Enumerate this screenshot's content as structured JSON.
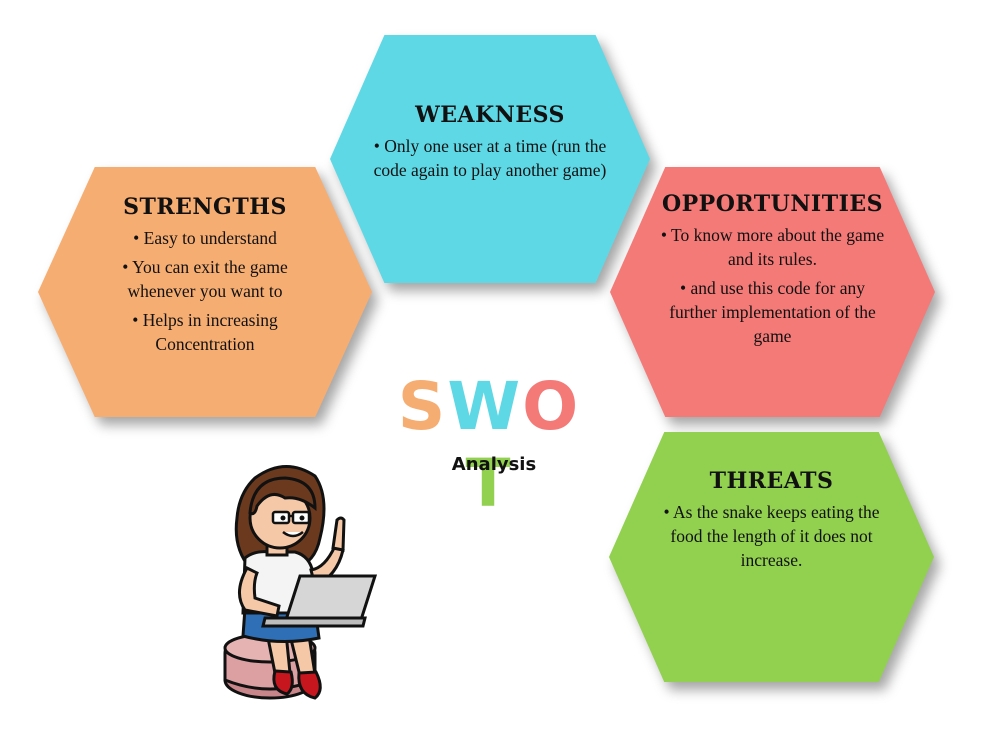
{
  "weakness": {
    "title": "WEAKNESS",
    "items": [
      "Only one user at a time (run the code again to play another game)"
    ]
  },
  "strengths": {
    "title": "STRENGTHS",
    "items": [
      "Easy to understand",
      "You can exit the game whenever you want to",
      "Helps in increasing Concentration"
    ]
  },
  "opportunities": {
    "title": "OPPORTUNITIES",
    "items": [
      " To know more about the game and its rules.",
      " and use this code for any further implementation  of the game"
    ]
  },
  "threats": {
    "title": "THREATS",
    "items": [
      "As the snake keeps eating the food the length of it does not increase."
    ]
  },
  "center": {
    "letters": [
      "S",
      "W",
      "O",
      "T"
    ],
    "subtitle": "Analysis"
  },
  "colors": {
    "weakness": "#5fd8e6",
    "strengths": "#f6ad72",
    "opportunities": "#f47a78",
    "threats": "#92d050",
    "swot_s": "#f6ad72",
    "swot_w": "#5fd8e6",
    "swot_o": "#f47a78",
    "swot_t": "#92d050"
  },
  "illustration": "woman-with-laptop-icon"
}
